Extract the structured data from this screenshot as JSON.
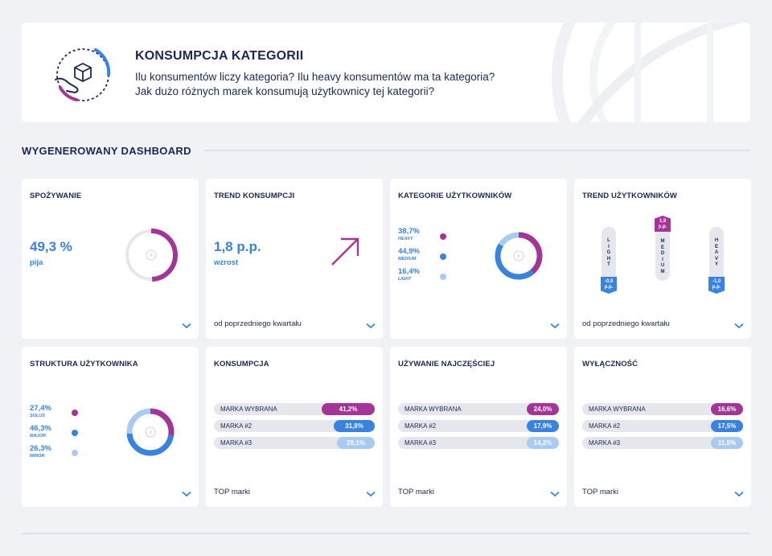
{
  "header": {
    "title": "KONSUMPCJA KATEGORII",
    "question_line1": "Ilu konsumentów liczy kategoria? Ilu heavy konsumentów ma ta kategoria?",
    "question_line2": "Jak dużo różnych marek konsumują użytkownicy tej kategorii?",
    "logo_icon": "category-box-icon"
  },
  "section": {
    "title": "WYGENEROWANY DASHBOARD"
  },
  "colors": {
    "navy": "#1d2755",
    "blue": "#3a82e0",
    "light_blue": "#a9cbf3",
    "magenta": "#a43597",
    "gray": "#e6e7ec"
  },
  "cards": {
    "spozywanie": {
      "title": "SPOŻYWANIE",
      "value": "49,3 %",
      "sub": "pija",
      "share": 0.493
    },
    "trend_konsumpcji": {
      "title": "TREND KONSUMPCJI",
      "value": "1,8 p.p.",
      "sub": "wzrost",
      "footer": "od poprzedniego kwartału",
      "icon": "arrow-up-right-icon"
    },
    "kategorie_uzytkownikow": {
      "title": "KATEGORIE UŻYTKOWNIKÓW",
      "items": [
        {
          "pct": "38,7%",
          "label": "HEAVY",
          "share": 0.387,
          "color": "#a43597"
        },
        {
          "pct": "44,9%",
          "label": "MEDIUM",
          "share": 0.449,
          "color": "#3a82e0"
        },
        {
          "pct": "16,4%",
          "label": "LIGHT",
          "share": 0.164,
          "color": "#a9cbf3"
        }
      ]
    },
    "trend_uzytkownikow": {
      "title": "TREND UŻYTKOWNIKÓW",
      "footer": "od poprzedniego kwartału",
      "bars": [
        {
          "label": "LIGHT",
          "change_line1": "-0,9",
          "change_line2": "p.p.",
          "direction": "down",
          "color": "#3a82e0"
        },
        {
          "label": "MEDIUM",
          "change_line1": "1,9",
          "change_line2": "p.p.",
          "direction": "up",
          "color": "#a43597"
        },
        {
          "label": "HEAVY",
          "change_line1": "-1,0",
          "change_line2": "p.p.",
          "direction": "down",
          "color": "#3a82e0"
        }
      ]
    },
    "struktura_uzytkownika": {
      "title": "STRUKTURA UŻYTKOWNIKA",
      "items": [
        {
          "pct": "27,4%",
          "label": "SOLUS",
          "share": 0.274,
          "color": "#a43597"
        },
        {
          "pct": "46,3%",
          "label": "MAJOR",
          "share": 0.463,
          "color": "#3a82e0"
        },
        {
          "pct": "26,3%",
          "label": "MINOR",
          "share": 0.263,
          "color": "#a9cbf3"
        }
      ]
    },
    "konsumpcja": {
      "title": "KONSUMPCJA",
      "footer": "TOP marki",
      "rows": [
        {
          "name": "MARKA WYBRANA",
          "value": "41,2%",
          "share": 0.412,
          "color": "#a43597"
        },
        {
          "name": "MARKA #2",
          "value": "31,8%",
          "share": 0.318,
          "color": "#3a82e0"
        },
        {
          "name": "MARKA #3",
          "value": "29,1%",
          "share": 0.291,
          "color": "#a9cbf3"
        }
      ]
    },
    "uzywanie_najczesciej": {
      "title": "UŻYWANIE NAJCZĘŚCIEJ",
      "footer": "TOP marki",
      "rows": [
        {
          "name": "MARKA WYBRANA",
          "value": "24,0%",
          "share": 0.24,
          "color": "#a43597"
        },
        {
          "name": "MARKA #2",
          "value": "17,9%",
          "share": 0.179,
          "color": "#3a82e0"
        },
        {
          "name": "MARKA #3",
          "value": "14,2%",
          "share": 0.142,
          "color": "#a9cbf3"
        }
      ]
    },
    "wylacznosc": {
      "title": "WYŁĄCZNOŚĆ",
      "footer": "TOP marki",
      "rows": [
        {
          "name": "MARKA WYBRANA",
          "value": "16,6%",
          "share": 0.166,
          "color": "#a43597"
        },
        {
          "name": "MARKA #2",
          "value": "17,5%",
          "share": 0.175,
          "color": "#3a82e0"
        },
        {
          "name": "MARKA #3",
          "value": "11,5%",
          "share": 0.115,
          "color": "#a9cbf3"
        }
      ]
    }
  }
}
